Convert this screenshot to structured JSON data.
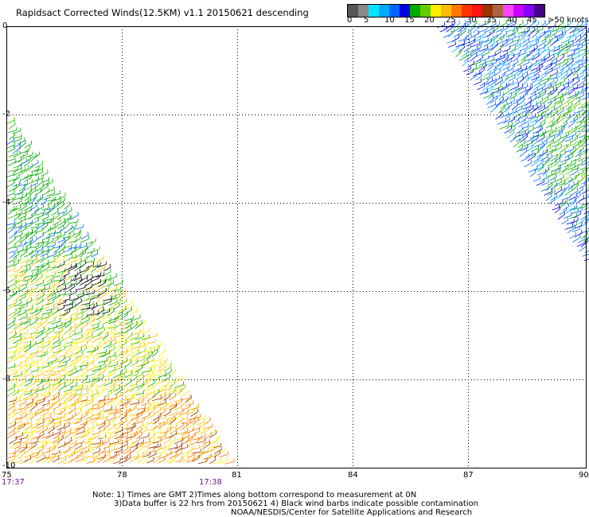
{
  "title": "Rapidsact Corrected Winds(12.5KM) v1.1 20150621 descending",
  "legend": {
    "colors": [
      "#555555",
      "#888888",
      "#00e5ff",
      "#00aaff",
      "#0066ff",
      "#0000e6",
      "#00a800",
      "#66cc00",
      "#ffee00",
      "#ffbb00",
      "#ff7700",
      "#ff3300",
      "#ff1111",
      "#993300",
      "#aa6644",
      "#ff44ff",
      "#cc00ff",
      "#8800ff",
      "#440088"
    ],
    "labels": [
      "0",
      "5",
      "10",
      "15",
      "20",
      "25",
      "30",
      "35",
      "40",
      "45",
      ">50 knots"
    ]
  },
  "map": {
    "x_labels": [
      "75",
      "78",
      "81",
      "84",
      "87",
      "90"
    ],
    "y_labels": [
      "0",
      "-2",
      "-4",
      "-6",
      "-8",
      "-10"
    ],
    "xlim": [
      75,
      90
    ],
    "ylim": [
      -10,
      0
    ]
  },
  "times": {
    "left": "17:37",
    "right": "17:38"
  },
  "notes": {
    "line1": "Note: 1) Times are GMT 2)Times along bottom correspond to measurement at 0N",
    "line2": "3)Data buffer is 22 hrs from 20150621 4) Black wind barbs indicate possible contamination",
    "line3": "NOAA/NESDIS/Center for Satellite Applications and Research"
  }
}
